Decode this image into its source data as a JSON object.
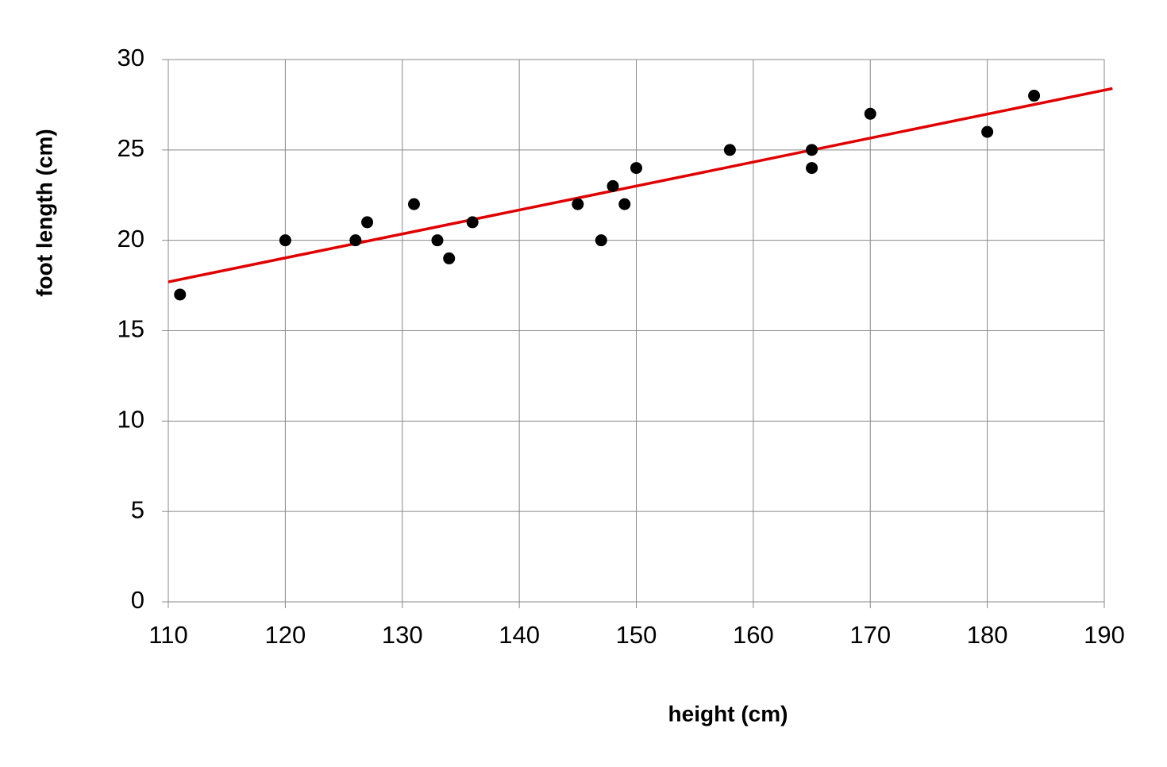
{
  "chart_data": {
    "type": "scatter",
    "x_label": "height (cm)",
    "y_label": "foot length (cm)",
    "x": [
      111,
      120,
      126,
      127,
      131,
      133,
      134,
      136,
      145,
      147,
      148,
      149,
      150,
      158,
      165,
      165,
      170,
      180,
      184
    ],
    "values": [
      17,
      20,
      20,
      21,
      22,
      20,
      19,
      21,
      22,
      20,
      23,
      22,
      24,
      25,
      25,
      24,
      27,
      26,
      28
    ],
    "color": "#000000",
    "trendline": {
      "x": [
        110,
        190.7
      ],
      "values": [
        17.7,
        28.4
      ],
      "color": "#e00000"
    },
    "xlim": [
      110,
      190
    ],
    "xticks": [
      110,
      120,
      130,
      140,
      150,
      160,
      170,
      180,
      190
    ],
    "ylim": [
      0,
      30
    ],
    "yticks": [
      0,
      5,
      10,
      15,
      20,
      25,
      30
    ],
    "grid": true
  }
}
